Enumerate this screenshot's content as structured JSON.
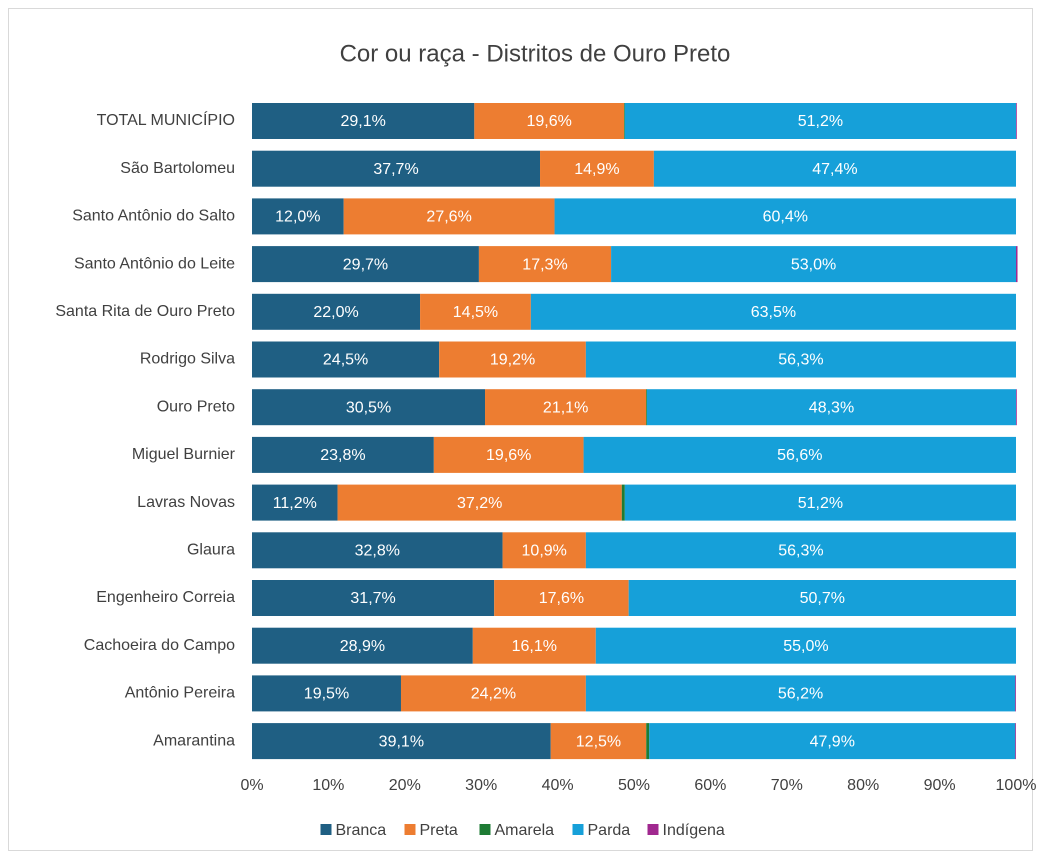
{
  "chart_data": {
    "type": "stacked_barh_100",
    "title": "Cor ou raça - Distritos de Ouro Preto",
    "categories": [
      "TOTAL MUNICÍPIO",
      "São Bartolomeu",
      "Santo Antônio do Salto",
      "Santo Antônio do Leite",
      "Santa Rita de Ouro Preto",
      "Rodrigo Silva",
      "Ouro Preto",
      "Miguel Burnier",
      "Lavras Novas",
      "Glaura",
      "Engenheiro Correia",
      "Cachoeira do Campo",
      "Antônio Pereira",
      "Amarantina"
    ],
    "series": [
      {
        "name": "Branca",
        "color": "#1f5f83",
        "values": [
          29.1,
          37.7,
          12.0,
          29.7,
          22.0,
          24.5,
          30.5,
          23.8,
          11.2,
          32.8,
          31.7,
          28.9,
          19.5,
          39.1
        ],
        "value_labels": [
          "29,1%",
          "37,7%",
          "12,0%",
          "29,7%",
          "22,0%",
          "24,5%",
          "30,5%",
          "23,8%",
          "11,2%",
          "32,8%",
          "31,7%",
          "28,9%",
          "19,5%",
          "39,1%"
        ]
      },
      {
        "name": "Preta",
        "color": "#ed7d31",
        "values": [
          19.6,
          14.9,
          27.6,
          17.3,
          14.5,
          19.2,
          21.1,
          19.6,
          37.2,
          10.9,
          17.6,
          16.1,
          24.2,
          12.5
        ],
        "value_labels": [
          "19,6%",
          "14,9%",
          "27,6%",
          "17,3%",
          "14,5%",
          "19,2%",
          "21,1%",
          "19,6%",
          "37,2%",
          "10,9%",
          "17,6%",
          "16,1%",
          "24,2%",
          "12,5%"
        ]
      },
      {
        "name": "Amarela",
        "color": "#1e7b34",
        "values": [
          0.1,
          0,
          0,
          0,
          0,
          0,
          0.1,
          0,
          0.4,
          0,
          0,
          0,
          0,
          0.4
        ]
      },
      {
        "name": "Parda",
        "color": "#16a0d9",
        "values": [
          51.2,
          47.4,
          60.4,
          53.0,
          63.5,
          56.3,
          48.3,
          56.6,
          51.2,
          56.3,
          50.7,
          55.0,
          56.2,
          47.9
        ],
        "value_labels": [
          "51,2%",
          "47,4%",
          "60,4%",
          "53,0%",
          "63,5%",
          "56,3%",
          "48,3%",
          "56,6%",
          "51,2%",
          "56,3%",
          "50,7%",
          "55,0%",
          "56,2%",
          "47,9%"
        ]
      },
      {
        "name": "Indígena",
        "color": "#a0288f",
        "values": [
          0.1,
          0,
          0,
          0.2,
          0,
          0,
          0.1,
          0,
          0,
          0,
          0,
          0,
          0.1,
          0.1
        ]
      }
    ],
    "xlim": [
      0,
      100
    ],
    "xticks": [
      {
        "value": 0,
        "label": "0%"
      },
      {
        "value": 10,
        "label": "10%"
      },
      {
        "value": 20,
        "label": "20%"
      },
      {
        "value": 30,
        "label": "30%"
      },
      {
        "value": 40,
        "label": "40%"
      },
      {
        "value": 50,
        "label": "50%"
      },
      {
        "value": 60,
        "label": "60%"
      },
      {
        "value": 70,
        "label": "70%"
      },
      {
        "value": 80,
        "label": "80%"
      },
      {
        "value": 90,
        "label": "90%"
      },
      {
        "value": 100,
        "label": "100%"
      }
    ],
    "grid": false,
    "legend": "bottom"
  }
}
